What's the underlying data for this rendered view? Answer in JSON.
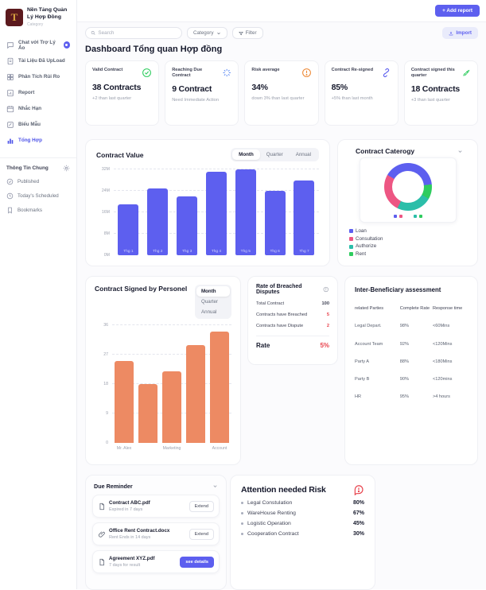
{
  "app": {
    "title": "Nền Tảng Quản Lý Hợp Đồng",
    "subtitle": "Category"
  },
  "sidebar": {
    "items": [
      {
        "label": "Chat với Trợ Lý Ảo"
      },
      {
        "label": "Tài Liệu Đã UpLoad"
      },
      {
        "label": "Phân Tích Rủi Ro"
      },
      {
        "label": "Report"
      },
      {
        "label": "Nhắc Hạn"
      },
      {
        "label": "Biểu Mẫu"
      },
      {
        "label": "Tổng Hợp"
      }
    ],
    "section": {
      "title": "Thông Tin Chung",
      "items": [
        {
          "label": "Published"
        },
        {
          "label": "Today's Scheduled"
        },
        {
          "label": "Bookmarks"
        }
      ]
    }
  },
  "header": {
    "add_report": "+ Add report",
    "search_placeholder": "Search",
    "category": "Category",
    "filter": "Filter",
    "import": "Import",
    "page_title": "Dashboard Tổng quan Hợp đồng"
  },
  "kpis": [
    {
      "label": "Valid Contract",
      "icon": "check-circle",
      "value": "38 Contracts",
      "note": "+2 than last quarter"
    },
    {
      "label": "Reaching Due Contract",
      "icon": "spinner",
      "value": "9 Contract",
      "note": "Need Immediate Action"
    },
    {
      "label": "Risk average",
      "icon": "alert-circle",
      "value": "34%",
      "note": "down 3% than last quarter"
    },
    {
      "label": "Contract Re-signed",
      "icon": "link",
      "value": "85%",
      "note": "+5% than last month"
    },
    {
      "label": "Contract signed this quarter",
      "icon": "rocket",
      "value": "18 Contracts",
      "note": "+3 than last quarter"
    }
  ],
  "chart_data": [
    {
      "id": "contract_value",
      "type": "bar",
      "title": "Contract Value",
      "tabs": [
        "Month",
        "Quarter",
        "Annual"
      ],
      "active_tab": "Month",
      "categories": [
        "Thg 1",
        "Thg 2",
        "Thg 3",
        "Thg 4",
        "Thg 5",
        "Thg 6",
        "Thg 7"
      ],
      "values": [
        19,
        25,
        22,
        31,
        32,
        24,
        28
      ],
      "unit": "M",
      "ylim": [
        0,
        32
      ],
      "yticks": [
        0,
        8,
        16,
        24,
        32
      ],
      "bar_color": "#5D5FEF",
      "labels_inside": true
    },
    {
      "id": "contract_category",
      "type": "pie",
      "title": "Contract Caterogy",
      "slices": [
        {
          "name": "Loan",
          "value": 40,
          "color": "#5D5FEF"
        },
        {
          "name": "Consultation",
          "value": 26,
          "color": "#ED5683"
        },
        {
          "name": "Authorize",
          "value": 24,
          "color": "#2BBEA9"
        },
        {
          "name": "Rent",
          "value": 10,
          "color": "#2ECC5E"
        }
      ],
      "draw_order": [
        0,
        3,
        2,
        1
      ],
      "start_angle": -60,
      "legend_position": "bottom-left"
    },
    {
      "id": "personnel",
      "type": "bar",
      "title": "Contract Signed by Personel",
      "tabs": [
        "Month",
        "Quarter",
        "Annual"
      ],
      "active_tab": "Month",
      "categories": [
        "Mr. Alex",
        "",
        "Marketing",
        "",
        "Account"
      ],
      "values": [
        25,
        18,
        22,
        30,
        34
      ],
      "unit": "",
      "ylim": [
        0,
        36
      ],
      "yticks": [
        0,
        9,
        18,
        27,
        36
      ],
      "bar_color": "#ED8A63",
      "labels_inside": false
    }
  ],
  "breached": {
    "title": "Rate of Breached Disputes",
    "rows": [
      {
        "label": "Total Contract",
        "value": "100",
        "highlight": false
      },
      {
        "label": "Contracts have Breached",
        "value": "5",
        "highlight": true
      },
      {
        "label": "Contracts have Dispute",
        "value": "2",
        "highlight": true
      }
    ],
    "rate_label": "Rate",
    "rate_value": "5%"
  },
  "assessment": {
    "title": "Inter-Beneficiary assessment",
    "columns": [
      "related Parties",
      "Complete Rate",
      "Response time"
    ],
    "rows": [
      {
        "party": "Legal Depart.",
        "rate": "98%",
        "response": "<60Mins"
      },
      {
        "party": "Account Team",
        "rate": "92%",
        "response": "<120Mins"
      },
      {
        "party": "Party A",
        "rate": "88%",
        "response": "<180Mins"
      },
      {
        "party": "Party B",
        "rate": "90%",
        "response": "<120mins"
      },
      {
        "party": "HR",
        "rate": "95%",
        "response": ">4 hours"
      }
    ]
  },
  "due_reminder": {
    "title": "Due Reminder",
    "items": [
      {
        "name": "Contract  ABC.pdf",
        "note": "Expired in 7 days",
        "action": "Extend",
        "primary": false
      },
      {
        "name": "Office Rent Contract.docx",
        "note": "Rent Ends in 14 days",
        "action": "Extend",
        "primary": false
      },
      {
        "name": "Agreement XYZ.pdf",
        "note": "7 days for result",
        "action": "see details",
        "primary": true
      }
    ]
  },
  "risk": {
    "title": "Attention needed Risk",
    "items": [
      {
        "label": "Legal Constulation",
        "value": "80%"
      },
      {
        "label": "WareHouse Renting",
        "value": "67%"
      },
      {
        "label": "Logistic Operation",
        "value": "45%"
      },
      {
        "label": "Cooperation Contract",
        "value": "30%"
      }
    ]
  },
  "colors": {
    "accent": "#5D5FEF",
    "accent_light_bg": "#E9EBFB",
    "orange_bar": "#ED8A63",
    "danger": "#E8424C",
    "success": "#2ECC5E",
    "warning": "#ED8936"
  }
}
